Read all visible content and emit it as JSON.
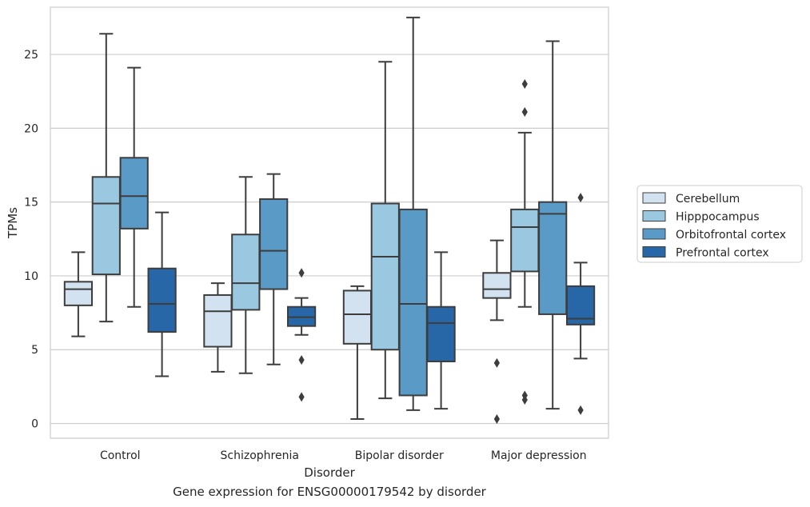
{
  "caption": "Gene expression for ENSG00000179542 by disorder",
  "chart_data": {
    "type": "box",
    "xlabel": "Disorder",
    "ylabel": "TPMs",
    "ylim": [
      -1,
      28.2
    ],
    "yticks": [
      0,
      5,
      10,
      15,
      20,
      25
    ],
    "grid": "horizontal",
    "legend_position": "right",
    "categories": [
      "Control",
      "Schizophrenia",
      "Bipolar disorder",
      "Major depression"
    ],
    "series": [
      {
        "name": "Cerebellum",
        "color": "#d2e2f0",
        "boxes": [
          {
            "whislo": 5.9,
            "q1": 8.0,
            "med": 9.1,
            "q3": 9.6,
            "whishi": 11.6,
            "fliers": []
          },
          {
            "whislo": 3.5,
            "q1": 5.2,
            "med": 7.6,
            "q3": 8.7,
            "whishi": 9.5,
            "fliers": []
          },
          {
            "whislo": 0.3,
            "q1": 5.4,
            "med": 7.4,
            "q3": 9.0,
            "whishi": 9.3,
            "fliers": []
          },
          {
            "whislo": 7.0,
            "q1": 8.5,
            "med": 9.1,
            "q3": 10.2,
            "whishi": 12.4,
            "fliers": [
              4.1,
              0.3
            ]
          }
        ]
      },
      {
        "name": "Hipppocampus",
        "color": "#9ac8e0",
        "boxes": [
          {
            "whislo": 6.9,
            "q1": 10.1,
            "med": 14.9,
            "q3": 16.7,
            "whishi": 26.4,
            "fliers": []
          },
          {
            "whislo": 3.4,
            "q1": 7.7,
            "med": 9.5,
            "q3": 12.8,
            "whishi": 16.7,
            "fliers": []
          },
          {
            "whislo": 1.7,
            "q1": 5.0,
            "med": 11.3,
            "q3": 14.9,
            "whishi": 24.5,
            "fliers": []
          },
          {
            "whislo": 7.9,
            "q1": 10.3,
            "med": 13.3,
            "q3": 14.5,
            "whishi": 19.7,
            "fliers": [
              23.0,
              21.1,
              1.9,
              1.6
            ]
          }
        ]
      },
      {
        "name": "Orbitofrontal cortex",
        "color": "#5a9ac6",
        "boxes": [
          {
            "whislo": 7.9,
            "q1": 13.2,
            "med": 15.4,
            "q3": 18.0,
            "whishi": 24.1,
            "fliers": []
          },
          {
            "whislo": 4.0,
            "q1": 9.1,
            "med": 11.7,
            "q3": 15.2,
            "whishi": 16.9,
            "fliers": []
          },
          {
            "whislo": 0.9,
            "q1": 1.9,
            "med": 8.1,
            "q3": 14.5,
            "whishi": 27.5,
            "fliers": []
          },
          {
            "whislo": 1.0,
            "q1": 7.4,
            "med": 14.2,
            "q3": 15.0,
            "whishi": 25.9,
            "fliers": []
          }
        ]
      },
      {
        "name": "Prefrontal cortex",
        "color": "#2767a8",
        "boxes": [
          {
            "whislo": 3.2,
            "q1": 6.2,
            "med": 8.1,
            "q3": 10.5,
            "whishi": 14.3,
            "fliers": []
          },
          {
            "whislo": 6.0,
            "q1": 6.6,
            "med": 7.2,
            "q3": 7.9,
            "whishi": 8.5,
            "fliers": [
              10.2,
              4.3,
              1.8
            ]
          },
          {
            "whislo": 1.0,
            "q1": 4.2,
            "med": 6.8,
            "q3": 7.9,
            "whishi": 11.6,
            "fliers": []
          },
          {
            "whislo": 4.4,
            "q1": 6.7,
            "med": 7.1,
            "q3": 9.3,
            "whishi": 10.9,
            "fliers": [
              15.3,
              0.9
            ]
          }
        ]
      }
    ]
  }
}
